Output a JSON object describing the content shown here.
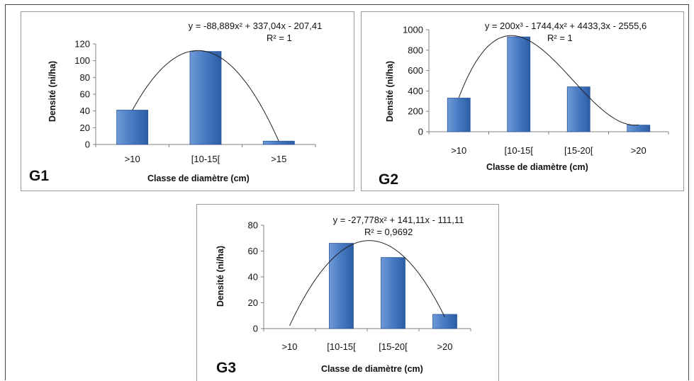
{
  "chart_data": [
    {
      "id": "G1",
      "type": "bar",
      "panel_label": "G1",
      "title": "",
      "categories": [
        ">10",
        "[10-15[",
        ">15"
      ],
      "values": [
        41,
        111,
        4
      ],
      "xlabel": "Classe de diamètre (cm)",
      "ylabel": "Densité (ni/ha)",
      "ylim": [
        0,
        120
      ],
      "yticks": [
        0,
        20,
        40,
        60,
        80,
        100,
        120
      ],
      "trendline": {
        "equation": "y = -88,889x² + 337,04x - 207,41",
        "r2": "R² = 1",
        "coefficients": [
          -207.41,
          337.04,
          -88.889
        ]
      },
      "grid": false,
      "bar_color": "#4a7cc4"
    },
    {
      "id": "G2",
      "type": "bar",
      "panel_label": "G2",
      "title": "",
      "categories": [
        ">10",
        "[10-15[",
        "[15-20[",
        ">20"
      ],
      "values": [
        330,
        930,
        440,
        65
      ],
      "xlabel": "Classe de diamètre (cm)",
      "ylabel": "Densité (ni/ha)",
      "ylim": [
        0,
        1000
      ],
      "yticks": [
        0,
        200,
        400,
        600,
        800,
        1000
      ],
      "trendline": {
        "equation": "y = 200x³ - 1744,4x² + 4433,3x - 2555,6",
        "r2": "R² = 1",
        "coefficients": [
          -2555.6,
          4433.3,
          -1744.4,
          200
        ]
      },
      "grid": false,
      "bar_color": "#4a7cc4"
    },
    {
      "id": "G3",
      "type": "bar",
      "panel_label": "G3",
      "title": "",
      "categories": [
        ">10",
        "[10-15[",
        "[15-20[",
        ">20"
      ],
      "values": [
        0,
        66,
        55,
        11
      ],
      "xlabel": "Classe de diamètre (cm)",
      "ylabel": "Densité (ni/ha)",
      "ylim": [
        0,
        80
      ],
      "yticks": [
        0,
        20,
        40,
        60,
        80
      ],
      "trendline": {
        "equation": "y = -27,778x² + 141,11x - 111,11",
        "r2": "R² = 0,9692",
        "coefficients": [
          -111.11,
          141.11,
          -27.778
        ]
      },
      "grid": false,
      "bar_color": "#4a7cc4"
    }
  ]
}
